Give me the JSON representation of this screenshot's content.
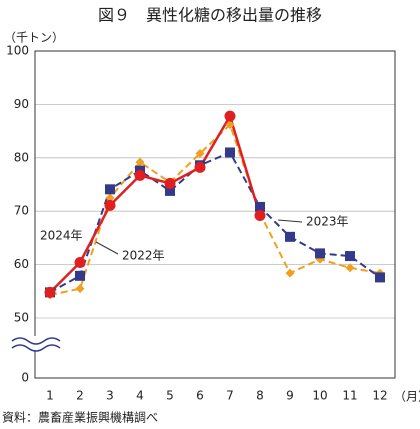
{
  "chart_data": {
    "type": "line",
    "title": "図９　異性化糖の移出量の推移",
    "y_label": "（千トン）",
    "x_label": "（月）",
    "source": "資料：農畜産業振興機構調べ",
    "categories": [
      "1",
      "2",
      "3",
      "4",
      "5",
      "6",
      "7",
      "8",
      "9",
      "10",
      "11",
      "12"
    ],
    "series": [
      {
        "name": "2024年",
        "color": "#e02020",
        "dash": false,
        "marker": "circle",
        "values": [
          54.8,
          60.4,
          71.1,
          76.7,
          75.2,
          78.2,
          87.8,
          69.2,
          null,
          null,
          null,
          null
        ]
      },
      {
        "name": "2023年",
        "color": "#333a8c",
        "dash": true,
        "marker": "square",
        "values": [
          54.8,
          57.9,
          74.1,
          77.6,
          73.8,
          78.6,
          81.0,
          70.8,
          65.2,
          62.1,
          61.6,
          57.6
        ]
      },
      {
        "name": "2022年",
        "color": "#f0a020",
        "dash": true,
        "marker": "diamond",
        "values": [
          54.3,
          55.5,
          72.5,
          79.2,
          75.4,
          80.8,
          86.2,
          69.6,
          58.4,
          61.0,
          59.4,
          58.4
        ]
      }
    ],
    "ylim": [
      0,
      100
    ],
    "axis_break": [
      0,
      50
    ],
    "yticks": [
      0,
      50,
      60,
      70,
      80,
      90,
      100
    ],
    "grid": true
  }
}
